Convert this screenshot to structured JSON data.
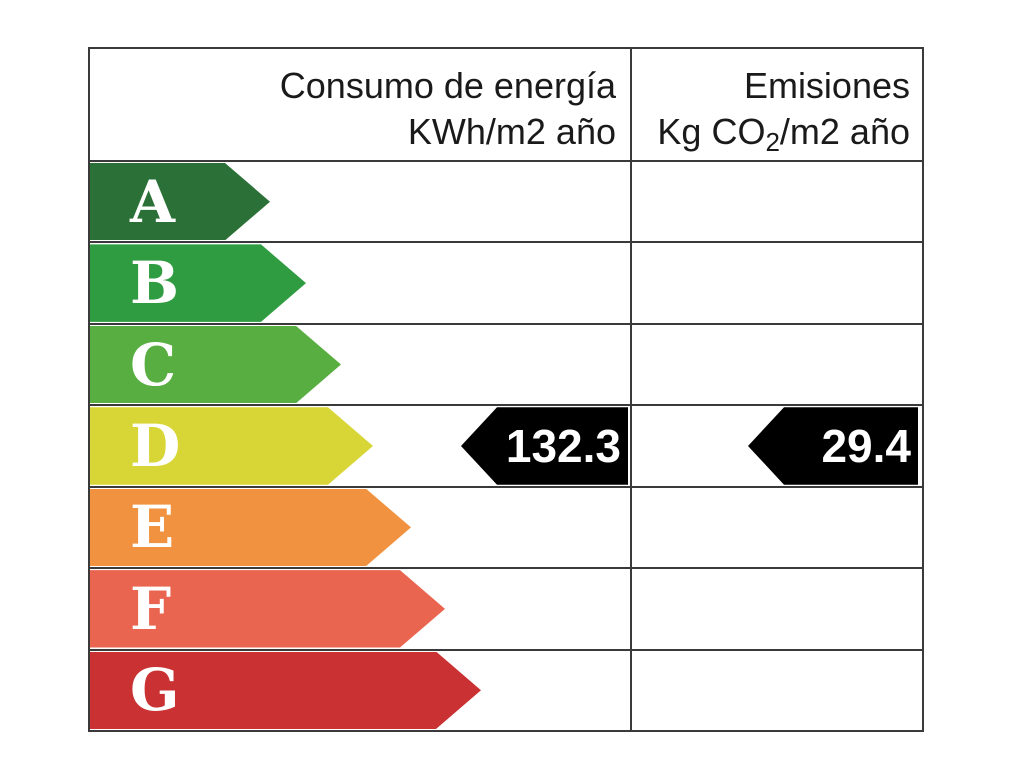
{
  "table": {
    "border_color": "#3a3a3a",
    "header": {
      "energy_title": "Consumo de energía",
      "energy_unit": "KWh/m2 año",
      "emissions_title": "Emisiones",
      "emissions_unit_p1": "Kg CO",
      "emissions_unit_sub": "2",
      "emissions_unit_p2": "/m2 año"
    },
    "ratings": [
      {
        "label": "A",
        "color": "#2b7137",
        "arrow_width": 180
      },
      {
        "label": "B",
        "color": "#2f9c41",
        "arrow_width": 216
      },
      {
        "label": "C",
        "color": "#58ae40",
        "arrow_width": 251
      },
      {
        "label": "D",
        "color": "#d8d637",
        "arrow_width": 283
      },
      {
        "label": "E",
        "color": "#f0923f",
        "arrow_width": 321
      },
      {
        "label": "F",
        "color": "#ea654f",
        "arrow_width": 355
      },
      {
        "label": "G",
        "color": "#ca3132",
        "arrow_width": 391
      }
    ],
    "indicators": {
      "rated_class": "D",
      "arrow_color": "#000000",
      "text_color": "#ffffff",
      "consumption_value": "132.3",
      "emissions_value": "29.4"
    }
  },
  "chart_data": {
    "type": "bar",
    "categories": [
      "A",
      "B",
      "C",
      "D",
      "E",
      "F",
      "G"
    ],
    "bar_colors": [
      "#2b7137",
      "#2f9c41",
      "#58ae40",
      "#d8d637",
      "#f0923f",
      "#ea654f",
      "#ca3132"
    ],
    "bar_relative_lengths": [
      180,
      216,
      251,
      283,
      321,
      355,
      391
    ],
    "columns": [
      "Consumo de energía KWh/m2 año",
      "Emisiones Kg CO2/m2 año"
    ],
    "selected_class": "D",
    "values": {
      "consumo_kwh_m2_ano": 132.3,
      "emisiones_kg_co2_m2_ano": 29.4
    },
    "title": "",
    "legend": "none",
    "grid": "table-lines"
  }
}
